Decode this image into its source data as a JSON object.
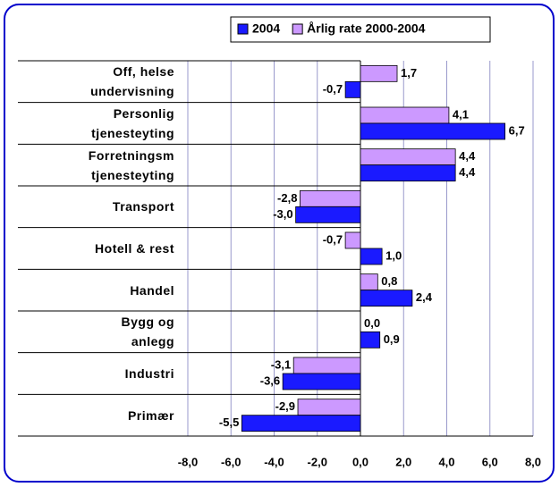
{
  "chart_data": {
    "type": "hbar",
    "categories": [
      "Off, helse\nundervisning",
      "Personlig\ntjenesteyting",
      "Forretningsm\ntjenesteyting",
      "Transport",
      "Hotell & rest",
      "Handel",
      "Bygg og\nanlegg",
      "Industri",
      "Primær"
    ],
    "series": [
      {
        "name": "2004",
        "color": "#1a1aff",
        "values": [
          -0.7,
          6.7,
          4.4,
          -3.0,
          1.0,
          2.4,
          0.9,
          -3.6,
          -5.5
        ],
        "value_labels": [
          "-0,7",
          "6,7",
          "4,4",
          "-3,0",
          "1,0",
          "2,4",
          "0,9",
          "-3,6",
          "-5,5"
        ]
      },
      {
        "name": "Årlig rate 2000-2004",
        "color": "#cc99ff",
        "values": [
          1.7,
          4.1,
          4.4,
          -2.8,
          -0.7,
          0.8,
          0.0,
          -3.1,
          -2.9
        ],
        "value_labels": [
          "1,7",
          "4,1",
          "4,4",
          "-2,8",
          "-0,7",
          "0,8",
          "0,0",
          "-3,1",
          "-2,9"
        ]
      }
    ],
    "xlim": [
      -8,
      8
    ],
    "xticks": [
      {
        "value": -8,
        "label": "-8,0"
      },
      {
        "value": -6,
        "label": "-6,0"
      },
      {
        "value": -4,
        "label": "-4,0"
      },
      {
        "value": -2,
        "label": "-2,0"
      },
      {
        "value": 0,
        "label": "0,0"
      },
      {
        "value": 2,
        "label": "2,0"
      },
      {
        "value": 4,
        "label": "4,0"
      },
      {
        "value": 6,
        "label": "6,0"
      },
      {
        "value": 8,
        "label": "8,0"
      }
    ],
    "grid": true,
    "legend": "top"
  }
}
